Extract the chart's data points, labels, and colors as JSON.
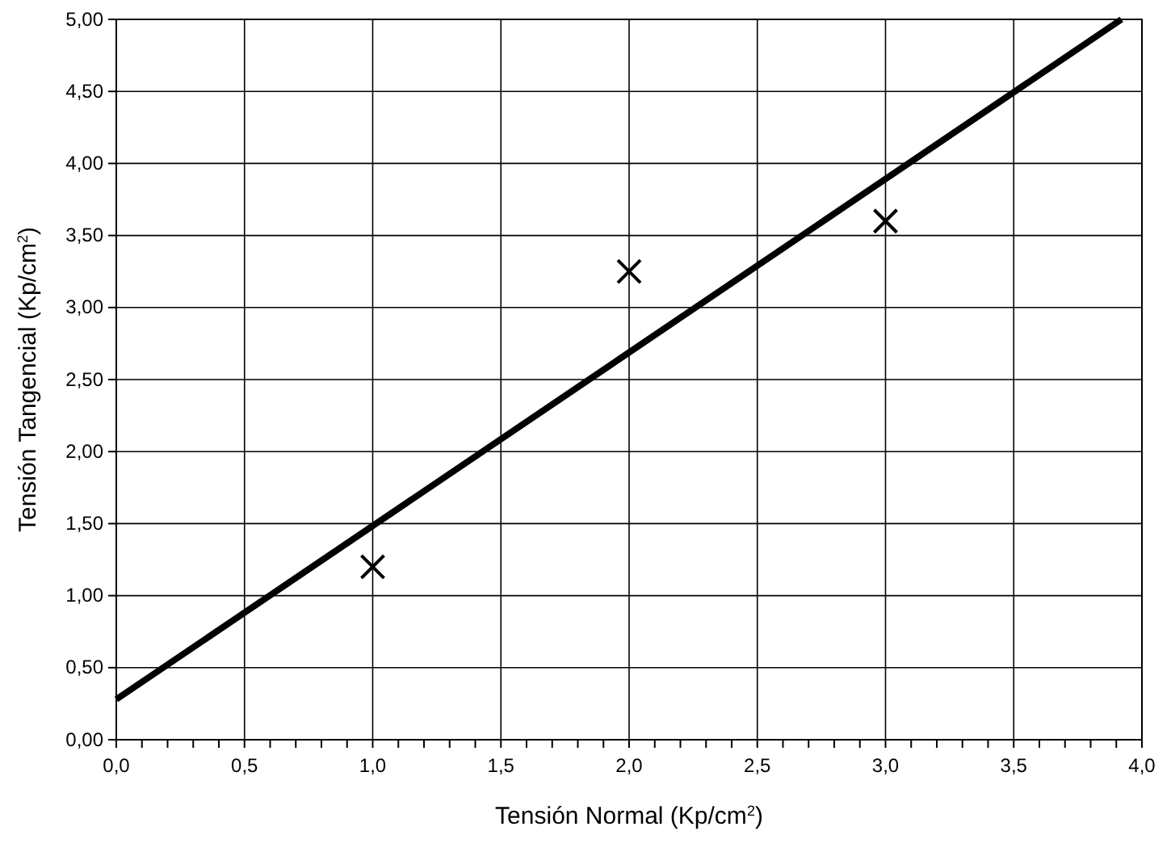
{
  "chart_data": {
    "type": "scatter",
    "xlabel": "Tensión Normal (Kp/cm$^{2}$)",
    "ylabel": "Tensión Tangencial (Kp/cm$^{2}$)",
    "xlim": [
      0,
      4
    ],
    "ylim": [
      0,
      5
    ],
    "xticks": [
      {
        "value": 0,
        "label": "0,0"
      },
      {
        "value": 0.1,
        "label": null
      },
      {
        "value": 0.2,
        "label": null
      },
      {
        "value": 0.3,
        "label": null
      },
      {
        "value": 0.4,
        "label": null
      },
      {
        "value": 0.5,
        "label": "0,5"
      },
      {
        "value": 0.6,
        "label": null
      },
      {
        "value": 0.7,
        "label": null
      },
      {
        "value": 0.8,
        "label": null
      },
      {
        "value": 0.9,
        "label": null
      },
      {
        "value": 1,
        "label": "1,0"
      },
      {
        "value": 1.1,
        "label": null
      },
      {
        "value": 1.2,
        "label": null
      },
      {
        "value": 1.3,
        "label": null
      },
      {
        "value": 1.4,
        "label": null
      },
      {
        "value": 1.5,
        "label": "1,5"
      },
      {
        "value": 1.6,
        "label": null
      },
      {
        "value": 1.7,
        "label": null
      },
      {
        "value": 1.8,
        "label": null
      },
      {
        "value": 1.9,
        "label": null
      },
      {
        "value": 2,
        "label": "2,0"
      },
      {
        "value": 2.1,
        "label": null
      },
      {
        "value": 2.2,
        "label": null
      },
      {
        "value": 2.3,
        "label": null
      },
      {
        "value": 2.4,
        "label": null
      },
      {
        "value": 2.5,
        "label": "2,5"
      },
      {
        "value": 2.6,
        "label": null
      },
      {
        "value": 2.7,
        "label": null
      },
      {
        "value": 2.8,
        "label": null
      },
      {
        "value": 2.9,
        "label": null
      },
      {
        "value": 3,
        "label": "3,0"
      },
      {
        "value": 3.1,
        "label": null
      },
      {
        "value": 3.2,
        "label": null
      },
      {
        "value": 3.3,
        "label": null
      },
      {
        "value": 3.4,
        "label": null
      },
      {
        "value": 3.5,
        "label": "3,5"
      },
      {
        "value": 3.6,
        "label": null
      },
      {
        "value": 3.7,
        "label": null
      },
      {
        "value": 3.8,
        "label": null
      },
      {
        "value": 3.9,
        "label": null
      },
      {
        "value": 4,
        "label": "4,0"
      }
    ],
    "yticks": [
      {
        "value": 0,
        "label": "0,00"
      },
      {
        "value": 0.5,
        "label": "0,50"
      },
      {
        "value": 1,
        "label": "1,00"
      },
      {
        "value": 1.5,
        "label": "1,50"
      },
      {
        "value": 2,
        "label": "2,00"
      },
      {
        "value": 2.5,
        "label": "2,50"
      },
      {
        "value": 3,
        "label": "3,00"
      },
      {
        "value": 3.5,
        "label": "3,50"
      },
      {
        "value": 4,
        "label": "4,00"
      },
      {
        "value": 4.5,
        "label": "4,50"
      },
      {
        "value": 5,
        "label": "5,00"
      }
    ],
    "grid": true,
    "series": [
      {
        "color": "#000000",
        "marker": "cross",
        "x": [
          1,
          2,
          3
        ],
        "values": [
          1.2,
          3.25,
          3.6
        ]
      },
      {
        "type": "line",
        "marker": "none",
        "color": "#000000",
        "x": [
          0,
          3.92
        ],
        "values": [
          0.28,
          5.0
        ]
      }
    ]
  }
}
